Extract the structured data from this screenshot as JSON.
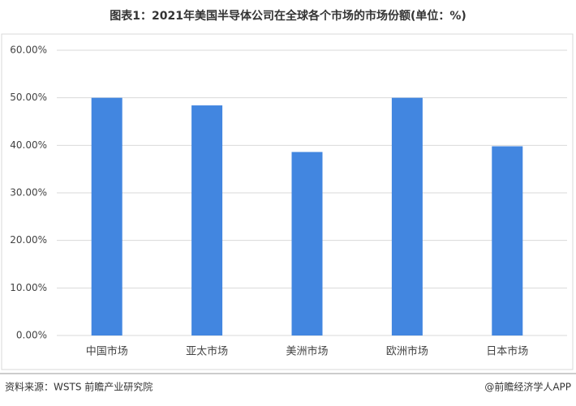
{
  "chart_data": {
    "type": "bar",
    "title": "图表1：2021年美国半导体公司在全球各个市场的市场份额(单位：%)",
    "categories": [
      "中国市场",
      "亚太市场",
      "美洲市场",
      "欧洲市场",
      "日本市场"
    ],
    "values": [
      50,
      48.4,
      38.6,
      50,
      39.8
    ],
    "color": "#4286e0",
    "ylim": [
      0,
      60
    ],
    "yticks": [
      {
        "value": 0,
        "label": "0.00%"
      },
      {
        "value": 10,
        "label": "10.00%"
      },
      {
        "value": 20,
        "label": "20.00%"
      },
      {
        "value": 30,
        "label": "30.00%"
      },
      {
        "value": 40,
        "label": "40.00%"
      },
      {
        "value": 50,
        "label": "50.00%"
      },
      {
        "value": 60,
        "label": "60.00%"
      }
    ],
    "grid": true,
    "source": "资料来源：WSTS 前瞻产业研究院",
    "credit": "@前瞻经济学人APP"
  }
}
